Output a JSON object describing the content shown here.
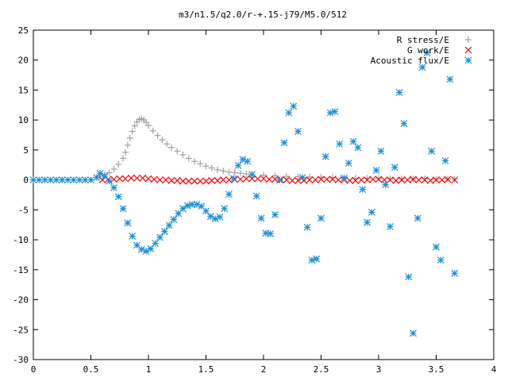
{
  "chart_data": {
    "type": "scatter",
    "title": "m3/n1.5/q2.0/r-+.15-j79/M5.0/512",
    "xlabel": "",
    "ylabel": "",
    "xlim": [
      0,
      4
    ],
    "ylim": [
      -30,
      25
    ],
    "x_ticks": [
      "0",
      "0.5",
      "1",
      "1.5",
      "2",
      "2.5",
      "3",
      "3.5",
      "4"
    ],
    "y_ticks": [
      "25",
      "20",
      "15",
      "10",
      "5",
      "0",
      "-5",
      "-10",
      "-15",
      "-20",
      "-25",
      "-30"
    ],
    "grid": false,
    "legend_position": "top-right",
    "series": [
      {
        "name": "R stress/E",
        "marker": "plus",
        "color": "#a0a0a0",
        "points": [
          [
            0.58,
            0.6
          ],
          [
            0.62,
            0.9
          ],
          [
            0.66,
            1.2
          ],
          [
            0.7,
            1.8
          ],
          [
            0.74,
            2.6
          ],
          [
            0.78,
            3.6
          ],
          [
            0.8,
            4.6
          ],
          [
            0.82,
            5.8
          ],
          [
            0.84,
            7.0
          ],
          [
            0.86,
            8.1
          ],
          [
            0.88,
            9.0
          ],
          [
            0.9,
            9.7
          ],
          [
            0.92,
            10.1
          ],
          [
            0.94,
            10.2
          ],
          [
            0.96,
            10.0
          ],
          [
            0.98,
            9.6
          ],
          [
            1.0,
            9.1
          ],
          [
            1.04,
            8.2
          ],
          [
            1.08,
            7.4
          ],
          [
            1.12,
            6.7
          ],
          [
            1.16,
            6.0
          ],
          [
            1.2,
            5.4
          ],
          [
            1.25,
            4.8
          ],
          [
            1.3,
            4.2
          ],
          [
            1.35,
            3.6
          ],
          [
            1.4,
            3.1
          ],
          [
            1.45,
            2.7
          ],
          [
            1.5,
            2.3
          ],
          [
            1.55,
            2.0
          ],
          [
            1.6,
            1.7
          ],
          [
            1.65,
            1.5
          ],
          [
            1.7,
            1.3
          ],
          [
            1.75,
            1.2
          ],
          [
            1.8,
            1.1
          ],
          [
            1.85,
            1.0
          ],
          [
            1.9,
            0.9
          ],
          [
            2.0,
            0.8
          ],
          [
            2.1,
            0.7
          ],
          [
            2.2,
            0.6
          ],
          [
            2.3,
            0.55
          ],
          [
            2.4,
            0.5
          ],
          [
            2.5,
            0.45
          ],
          [
            2.6,
            0.4
          ],
          [
            2.7,
            0.35
          ],
          [
            2.8,
            0.3
          ],
          [
            2.9,
            0.3
          ],
          [
            3.0,
            0.25
          ],
          [
            3.1,
            0.2
          ],
          [
            3.2,
            0.2
          ],
          [
            3.3,
            0.2
          ],
          [
            3.4,
            0.2
          ],
          [
            3.5,
            0.15
          ],
          [
            3.6,
            0.15
          ],
          [
            3.66,
            0.1
          ]
        ]
      },
      {
        "name": "G work/E",
        "marker": "cross",
        "color": "#ff0000",
        "points": [
          [
            0.6,
            0.0
          ],
          [
            0.65,
            0.1
          ],
          [
            0.7,
            0.1
          ],
          [
            0.75,
            0.2
          ],
          [
            0.8,
            0.2
          ],
          [
            0.85,
            0.3
          ],
          [
            0.9,
            0.3
          ],
          [
            0.95,
            0.3
          ],
          [
            1.0,
            0.2
          ],
          [
            1.05,
            0.1
          ],
          [
            1.1,
            0.0
          ],
          [
            1.15,
            0.0
          ],
          [
            1.2,
            -0.1
          ],
          [
            1.25,
            -0.1
          ],
          [
            1.3,
            -0.2
          ],
          [
            1.35,
            -0.2
          ],
          [
            1.4,
            -0.2
          ],
          [
            1.45,
            -0.2
          ],
          [
            1.5,
            -0.2
          ],
          [
            1.55,
            -0.1
          ],
          [
            1.6,
            -0.1
          ],
          [
            1.65,
            0.0
          ],
          [
            1.7,
            0.0
          ],
          [
            1.75,
            0.1
          ],
          [
            1.8,
            0.1
          ],
          [
            1.85,
            0.2
          ],
          [
            1.9,
            0.2
          ],
          [
            1.95,
            0.2
          ],
          [
            2.0,
            0.2
          ],
          [
            2.05,
            0.1
          ],
          [
            2.1,
            0.1
          ],
          [
            2.15,
            0.0
          ],
          [
            2.2,
            0.0
          ],
          [
            2.25,
            -0.1
          ],
          [
            2.3,
            -0.1
          ],
          [
            2.35,
            -0.1
          ],
          [
            2.4,
            0.0
          ],
          [
            2.45,
            0.0
          ],
          [
            2.5,
            0.1
          ],
          [
            2.55,
            0.1
          ],
          [
            2.6,
            0.1
          ],
          [
            2.65,
            0.0
          ],
          [
            2.7,
            0.0
          ],
          [
            2.75,
            -0.1
          ],
          [
            2.8,
            -0.1
          ],
          [
            2.85,
            0.0
          ],
          [
            2.9,
            0.0
          ],
          [
            2.95,
            0.1
          ],
          [
            3.0,
            0.1
          ],
          [
            3.05,
            0.0
          ],
          [
            3.1,
            0.0
          ],
          [
            3.15,
            -0.1
          ],
          [
            3.2,
            0.0
          ],
          [
            3.25,
            0.0
          ],
          [
            3.3,
            0.1
          ],
          [
            3.35,
            0.0
          ],
          [
            3.4,
            0.0
          ],
          [
            3.45,
            -0.1
          ],
          [
            3.5,
            0.0
          ],
          [
            3.55,
            0.0
          ],
          [
            3.6,
            0.1
          ],
          [
            3.66,
            0.0
          ]
        ]
      },
      {
        "name": "Acoustic flux/E",
        "marker": "star",
        "color": "#1a8fd6",
        "points": [
          [
            0.0,
            0.0
          ],
          [
            0.05,
            0.0
          ],
          [
            0.1,
            0.0
          ],
          [
            0.15,
            0.0
          ],
          [
            0.2,
            0.0
          ],
          [
            0.25,
            0.0
          ],
          [
            0.3,
            0.0
          ],
          [
            0.35,
            0.0
          ],
          [
            0.4,
            0.0
          ],
          [
            0.45,
            0.0
          ],
          [
            0.5,
            0.0
          ],
          [
            0.55,
            0.4
          ],
          [
            0.58,
            1.1
          ],
          [
            0.62,
            0.6
          ],
          [
            0.66,
            -0.2
          ],
          [
            0.7,
            -1.3
          ],
          [
            0.74,
            -2.8
          ],
          [
            0.78,
            -4.8
          ],
          [
            0.82,
            -7.2
          ],
          [
            0.86,
            -9.4
          ],
          [
            0.9,
            -10.9
          ],
          [
            0.94,
            -11.6
          ],
          [
            0.98,
            -11.9
          ],
          [
            1.02,
            -11.5
          ],
          [
            1.06,
            -10.6
          ],
          [
            1.1,
            -9.6
          ],
          [
            1.14,
            -8.6
          ],
          [
            1.18,
            -7.6
          ],
          [
            1.22,
            -6.6
          ],
          [
            1.26,
            -5.6
          ],
          [
            1.3,
            -4.8
          ],
          [
            1.34,
            -4.3
          ],
          [
            1.38,
            -4.1
          ],
          [
            1.42,
            -4.1
          ],
          [
            1.46,
            -4.4
          ],
          [
            1.5,
            -5.2
          ],
          [
            1.54,
            -6.1
          ],
          [
            1.58,
            -6.5
          ],
          [
            1.62,
            -6.2
          ],
          [
            1.66,
            -4.8
          ],
          [
            1.7,
            -2.4
          ],
          [
            1.74,
            0.2
          ],
          [
            1.78,
            2.4
          ],
          [
            1.82,
            3.4
          ],
          [
            1.86,
            3.1
          ],
          [
            1.9,
            0.9
          ],
          [
            1.94,
            -2.7
          ],
          [
            1.98,
            -6.4
          ],
          [
            2.02,
            -8.9
          ],
          [
            2.06,
            -9.0
          ],
          [
            2.1,
            -5.8
          ],
          [
            2.14,
            0.0
          ],
          [
            2.18,
            6.2
          ],
          [
            2.22,
            11.2
          ],
          [
            2.26,
            12.3
          ],
          [
            2.3,
            8.1
          ],
          [
            2.34,
            0.4
          ],
          [
            2.38,
            -7.9
          ],
          [
            2.42,
            -13.4
          ],
          [
            2.46,
            -13.2
          ],
          [
            2.5,
            -6.4
          ],
          [
            2.54,
            3.9
          ],
          [
            2.58,
            11.2
          ],
          [
            2.62,
            11.4
          ],
          [
            2.66,
            6.0
          ],
          [
            2.7,
            0.3
          ],
          [
            2.74,
            2.8
          ],
          [
            2.78,
            6.4
          ],
          [
            2.82,
            5.4
          ],
          [
            2.86,
            -1.6
          ],
          [
            2.9,
            -7.1
          ],
          [
            2.94,
            -5.4
          ],
          [
            2.98,
            1.6
          ],
          [
            3.02,
            4.8
          ],
          [
            3.06,
            -0.8
          ],
          [
            3.1,
            -7.8
          ],
          [
            3.14,
            2.1
          ],
          [
            3.18,
            14.6
          ],
          [
            3.22,
            9.4
          ],
          [
            3.26,
            -16.2
          ],
          [
            3.3,
            -25.6
          ],
          [
            3.34,
            -6.4
          ],
          [
            3.38,
            18.8
          ],
          [
            3.42,
            21.2
          ],
          [
            3.46,
            4.8
          ],
          [
            3.5,
            -11.2
          ],
          [
            3.54,
            -13.4
          ],
          [
            3.58,
            3.2
          ],
          [
            3.62,
            16.8
          ],
          [
            3.66,
            -15.6
          ]
        ]
      }
    ]
  }
}
